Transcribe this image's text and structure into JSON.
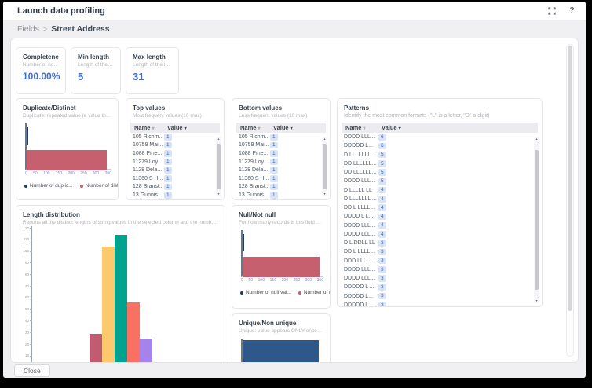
{
  "window": {
    "title": "Launch data profiling",
    "help_icon": "?"
  },
  "breadcrumb": {
    "parent": "Fields",
    "separator": ">",
    "current": "Street Address"
  },
  "stats": [
    {
      "title": "Completeness",
      "subtitle": "Number of non em...",
      "value": "100.00%"
    },
    {
      "title": "Min length",
      "subtitle": "Length of the shor...",
      "value": "5"
    },
    {
      "title": "Max length",
      "subtitle": "Length of the long...",
      "value": "31"
    }
  ],
  "tables": {
    "columns": {
      "name": "Name",
      "value": "Value"
    },
    "top_values": {
      "title": "Top values",
      "subtitle": "Most frequent values (10 max)",
      "rows": [
        {
          "name": "105 Richm...",
          "value": "1"
        },
        {
          "name": "10759 Mai...",
          "value": "1"
        },
        {
          "name": "1088 Pine...",
          "value": "1"
        },
        {
          "name": "11279 Loy...",
          "value": "1"
        },
        {
          "name": "1128 Dela...",
          "value": "1"
        },
        {
          "name": "11360 S H...",
          "value": "1"
        },
        {
          "name": "128 Branst...",
          "value": "1"
        },
        {
          "name": "13 Gunnis...",
          "value": "1"
        },
        {
          "name": "",
          "value": "1"
        }
      ]
    },
    "bottom_values": {
      "title": "Bottom values",
      "subtitle": "Less frequent values (10 max)",
      "rows": [
        {
          "name": "105 Richm...",
          "value": "1"
        },
        {
          "name": "10759 Mai...",
          "value": "1"
        },
        {
          "name": "1088 Pine...",
          "value": "1"
        },
        {
          "name": "11279 Loy...",
          "value": "1"
        },
        {
          "name": "1128 Dela...",
          "value": "1"
        },
        {
          "name": "11360 S H...",
          "value": "1"
        },
        {
          "name": "128 Branst...",
          "value": "1"
        },
        {
          "name": "13 Gunnis...",
          "value": "1"
        },
        {
          "name": "",
          "value": "1"
        }
      ]
    },
    "patterns": {
      "title": "Patterns",
      "subtitle": "Identify the most common formats (\"L\" is a letter, \"D\" a digit)",
      "rows": [
        {
          "name": "DDDD LLL...",
          "value": "6"
        },
        {
          "name": "DDDDD L...",
          "value": "6"
        },
        {
          "name": "D LLLLLLL...",
          "value": "5"
        },
        {
          "name": "DD LLLLLL...",
          "value": "5"
        },
        {
          "name": "DD LLLLLL...",
          "value": "5"
        },
        {
          "name": "DDDD LLL...",
          "value": "5"
        },
        {
          "name": "D LLLLL LL",
          "value": "4"
        },
        {
          "name": "D LLLLLLL ...",
          "value": "4"
        },
        {
          "name": "DD L LLLL...",
          "value": "4"
        },
        {
          "name": "DDDD L L...",
          "value": "4"
        },
        {
          "name": "DDDD LLL...",
          "value": "4"
        },
        {
          "name": "DDDD LLL...",
          "value": "4"
        },
        {
          "name": "D L DDLL LL",
          "value": "3"
        },
        {
          "name": "DD L LLLL...",
          "value": "3"
        },
        {
          "name": "DDD LLLL...",
          "value": "3"
        },
        {
          "name": "DDDD LLL...",
          "value": "3"
        },
        {
          "name": "DDDD LLL...",
          "value": "3"
        },
        {
          "name": "DDDDD L ...",
          "value": "3"
        },
        {
          "name": "DDDDD L...",
          "value": "3"
        },
        {
          "name": "DDDDD L...",
          "value": "3"
        }
      ]
    }
  },
  "chart_data": [
    {
      "type": "bar",
      "orientation": "horizontal",
      "title": "Duplicate/Distinct",
      "subtitle": "Duplicate: repeated value (a value that alrea...",
      "xlim": [
        0,
        350
      ],
      "xticks": [
        0,
        50,
        100,
        150,
        200,
        250,
        300,
        350
      ],
      "series": [
        {
          "name": "Number of duplic...",
          "value": 2,
          "color": "#1e3c6c"
        },
        {
          "name": "Number of distinc...",
          "value": 340,
          "color": "#c6606e"
        }
      ],
      "legend": true
    },
    {
      "type": "bar",
      "orientation": "horizontal",
      "title": "Null/Not null",
      "subtitle": "For how many records is this field null? How ...",
      "xlim": [
        0,
        350
      ],
      "xticks": [
        0,
        50,
        100,
        150,
        200,
        250,
        300,
        350
      ],
      "series": [
        {
          "name": "Number of null val...",
          "value": 0,
          "color": "#1e3c6c"
        },
        {
          "name": "Number of not nul...",
          "value": 342,
          "color": "#c6606e"
        }
      ],
      "legend": true
    },
    {
      "type": "bar",
      "orientation": "vertical",
      "title": "Length distribution",
      "subtitle": "Reports all the distinct lengths of string values in the selected column and the number of rows in...",
      "ylim": [
        0,
        120
      ],
      "yticks": [
        10,
        20,
        30,
        40,
        50,
        60,
        70,
        80,
        90,
        100,
        110,
        120
      ],
      "values": [
        29,
        104,
        114,
        56,
        25
      ],
      "colors": [
        "#c05c72",
        "#fcca6c",
        "#02a28e",
        "#fb7061",
        "#a583ea"
      ]
    },
    {
      "type": "bar",
      "orientation": "horizontal",
      "title": "Unique/Non unique",
      "subtitle": "Unique: value appears ONLY once among th...",
      "xlim": [
        0,
        350
      ],
      "series": [
        {
          "value": 338,
          "color": "#2e578a"
        },
        {
          "value": 4,
          "color": "#c6606e"
        }
      ],
      "legend": false
    }
  ],
  "footer": {
    "close_label": "Close"
  }
}
